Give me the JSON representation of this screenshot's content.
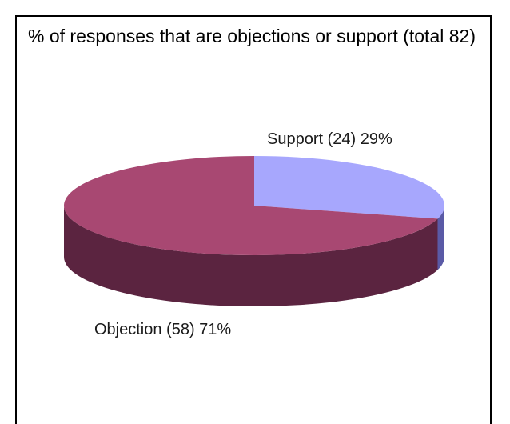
{
  "chart_data": {
    "type": "pie",
    "title": "% of responses that are objections or support (total 82)",
    "style": "3d",
    "grid": false,
    "legend": "none",
    "slices": [
      {
        "label": "Support (24) 29%",
        "name": "Support",
        "value": 24,
        "percent": 29,
        "color": "#a7a7fd",
        "side_color": "#5a5aa6"
      },
      {
        "label": "Objection (58) 71%",
        "name": "Objection",
        "value": 58,
        "percent": 71,
        "color": "#a84872",
        "side_color": "#5b2440"
      }
    ]
  }
}
